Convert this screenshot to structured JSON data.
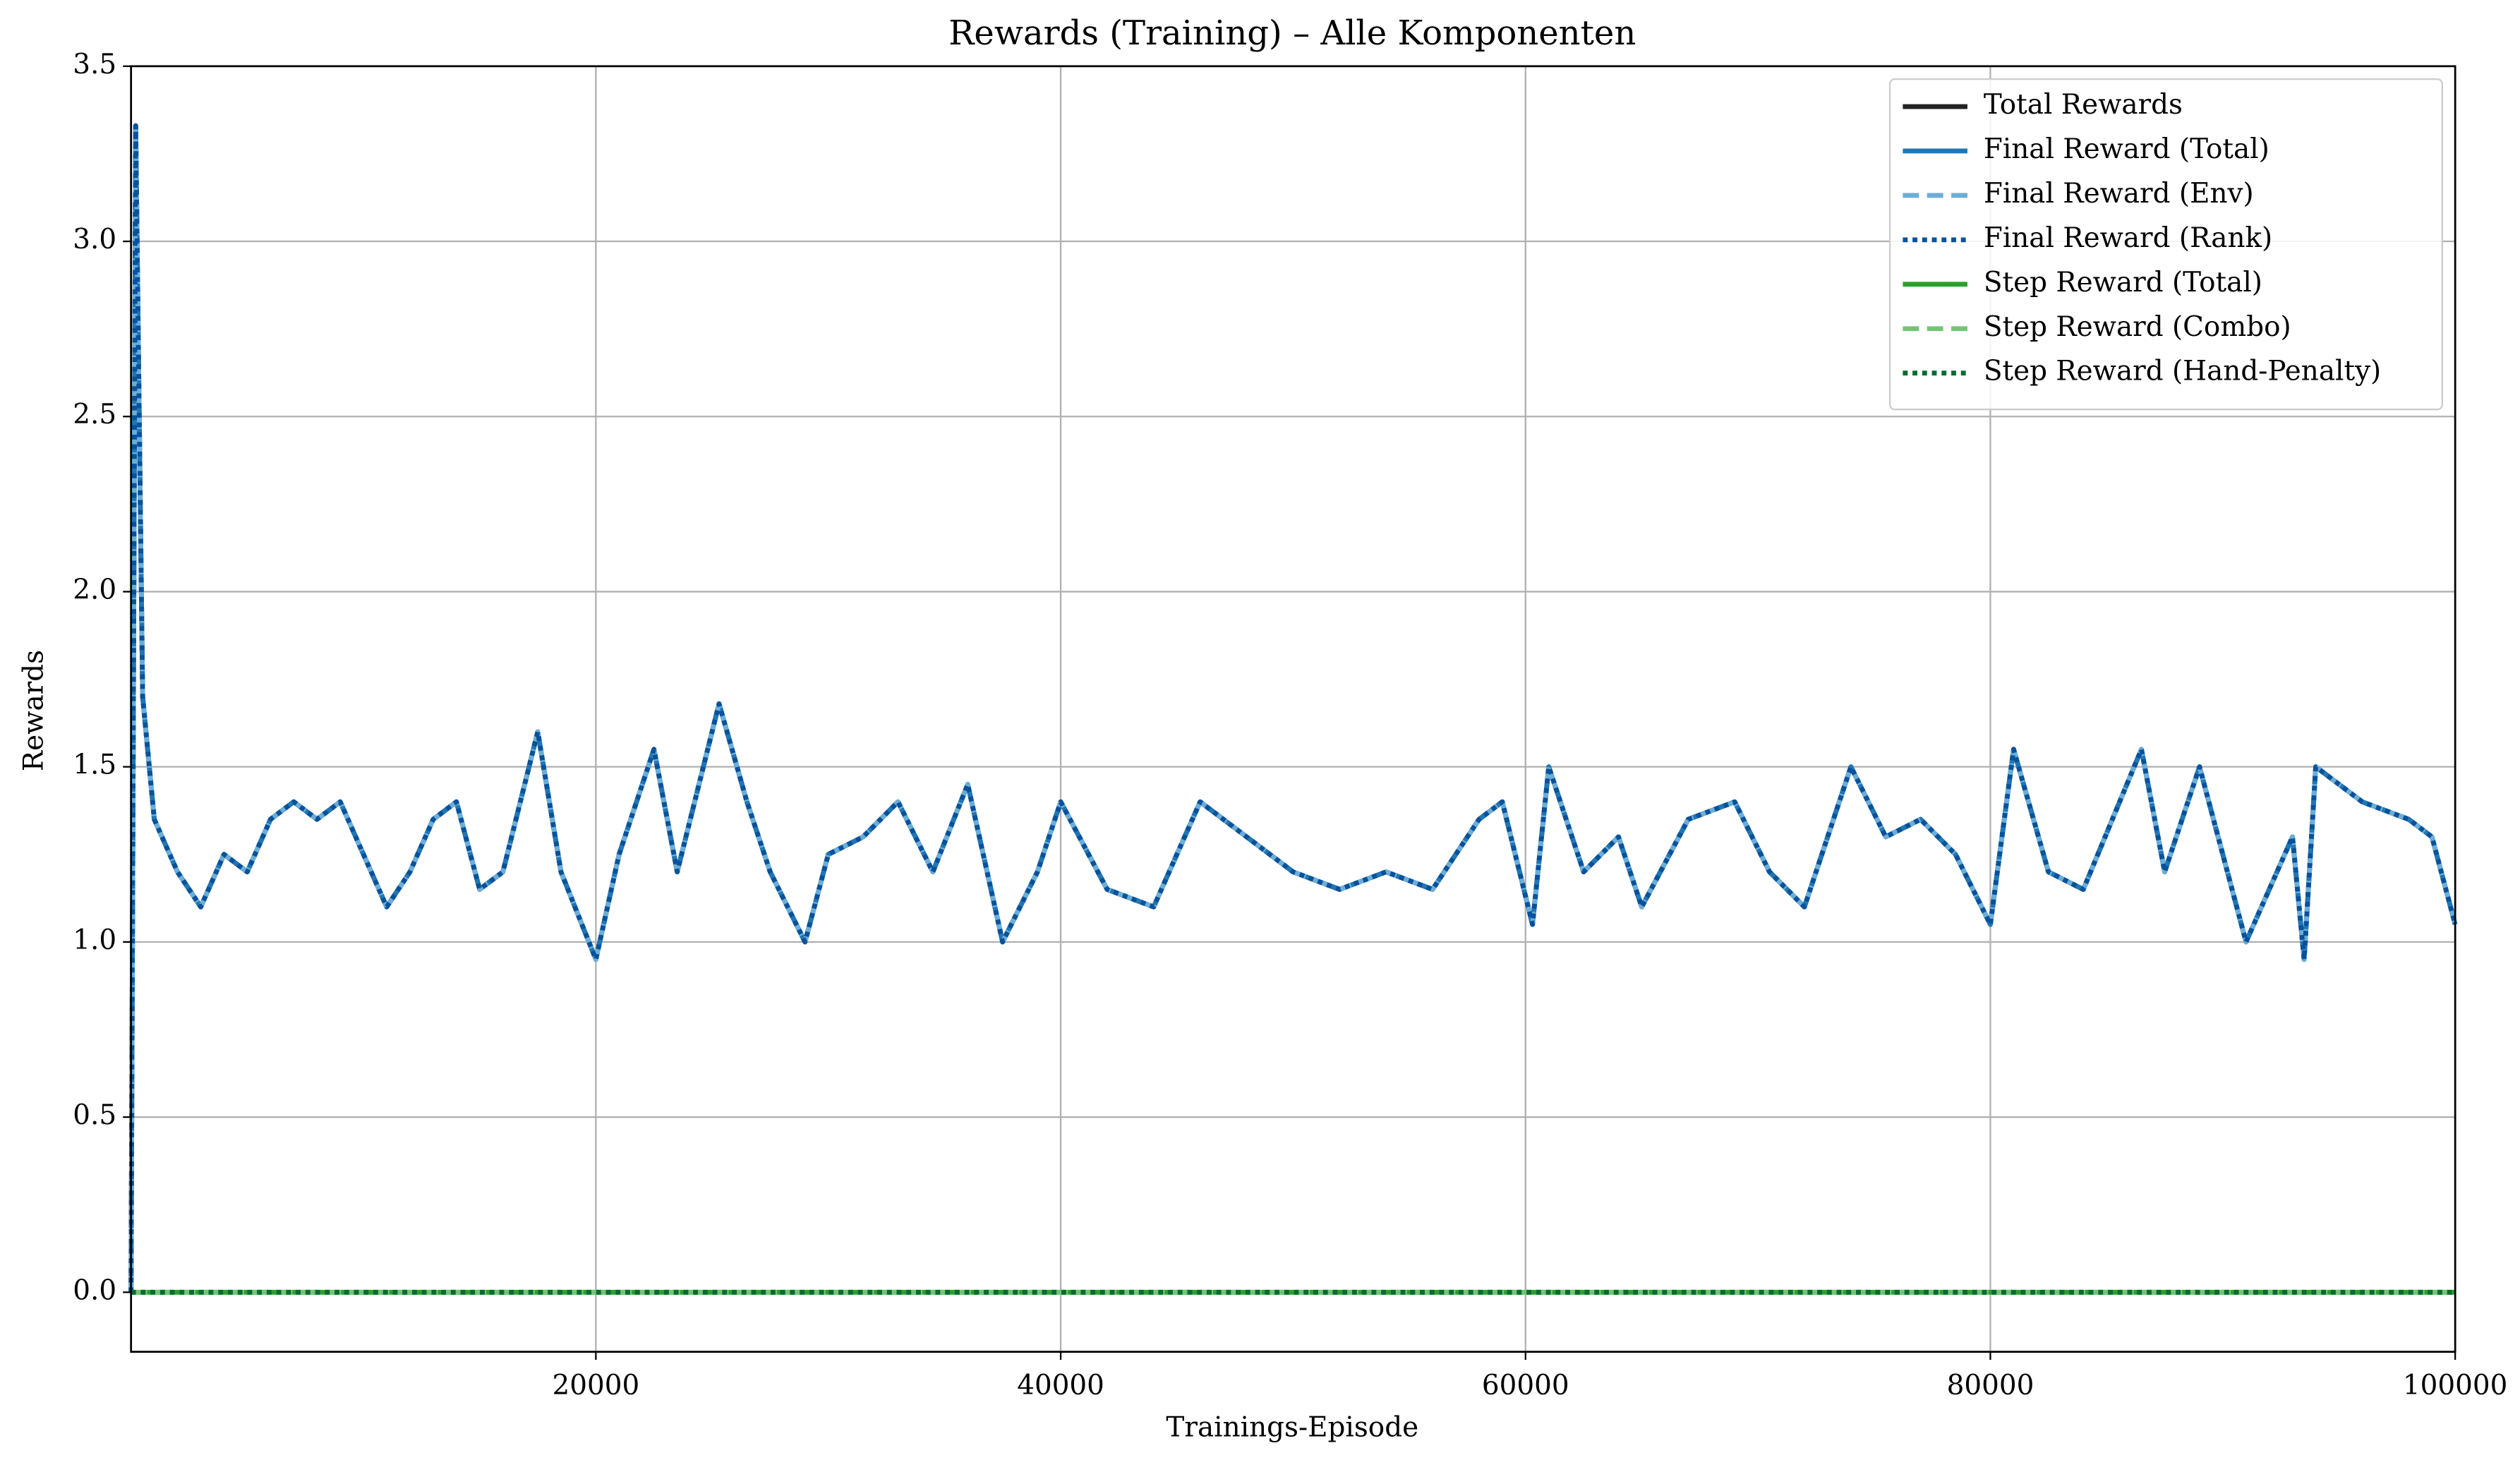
{
  "chart_data": {
    "type": "line",
    "title": "Rewards (Training) – Alle Komponenten",
    "x_label": "Trainings-Episode",
    "y_label": "Rewards",
    "xlim": [
      0,
      100000
    ],
    "xticks": [
      20000,
      40000,
      60000,
      80000,
      100000
    ],
    "ylim": [
      -0.17,
      3.5
    ],
    "yticks": [
      {
        "value": 0,
        "label": "0.0"
      },
      0.5,
      {
        "value": 1,
        "label": "1.0"
      },
      1.5,
      {
        "value": 2,
        "label": "2.0"
      },
      2.5,
      {
        "value": 3,
        "label": "3.0"
      },
      3.5
    ],
    "grid": true,
    "legend": "upper right",
    "x": [
      0,
      200,
      500,
      1000,
      2000,
      3000,
      4000,
      5000,
      6000,
      7000,
      8000,
      9000,
      10000,
      11000,
      12000,
      13000,
      14000,
      15000,
      16000,
      17500,
      18500,
      20000,
      21000,
      22500,
      23500,
      25300,
      26500,
      27500,
      29000,
      30000,
      31500,
      33000,
      34500,
      36000,
      37500,
      39000,
      40000,
      42000,
      44000,
      46000,
      48000,
      50000,
      52000,
      54000,
      56000,
      58000,
      59000,
      60300,
      61000,
      62500,
      64000,
      65000,
      67000,
      69000,
      70500,
      72000,
      74000,
      75500,
      77000,
      78500,
      80000,
      81000,
      82500,
      84000,
      86500,
      87500,
      89000,
      91000,
      93000,
      93500,
      94000,
      96000,
      98000,
      99000,
      100000
    ],
    "series": [
      {
        "name": "Total Rewards",
        "color": "#222222",
        "style": "solid",
        "values": [
          0,
          3.33,
          1.7,
          1.35,
          1.2,
          1.1,
          1.25,
          1.2,
          1.35,
          1.4,
          1.35,
          1.4,
          1.25,
          1.1,
          1.2,
          1.35,
          1.4,
          1.15,
          1.2,
          1.6,
          1.2,
          0.95,
          1.25,
          1.55,
          1.2,
          1.68,
          1.4,
          1.2,
          1.0,
          1.25,
          1.3,
          1.4,
          1.2,
          1.45,
          1.0,
          1.2,
          1.4,
          1.15,
          1.1,
          1.4,
          1.3,
          1.2,
          1.15,
          1.2,
          1.15,
          1.35,
          1.4,
          1.05,
          1.5,
          1.2,
          1.3,
          1.1,
          1.35,
          1.4,
          1.2,
          1.1,
          1.5,
          1.3,
          1.35,
          1.25,
          1.05,
          1.55,
          1.2,
          1.15,
          1.55,
          1.2,
          1.5,
          1.0,
          1.3,
          0.95,
          1.5,
          1.4,
          1.35,
          1.3,
          1.05
        ]
      },
      {
        "name": "Final Reward (Total)",
        "color": "#1f77b4",
        "style": "solid",
        "values": [
          0,
          3.33,
          1.7,
          1.35,
          1.2,
          1.1,
          1.25,
          1.2,
          1.35,
          1.4,
          1.35,
          1.4,
          1.25,
          1.1,
          1.2,
          1.35,
          1.4,
          1.15,
          1.2,
          1.6,
          1.2,
          0.95,
          1.25,
          1.55,
          1.2,
          1.68,
          1.4,
          1.2,
          1.0,
          1.25,
          1.3,
          1.4,
          1.2,
          1.45,
          1.0,
          1.2,
          1.4,
          1.15,
          1.1,
          1.4,
          1.3,
          1.2,
          1.15,
          1.2,
          1.15,
          1.35,
          1.4,
          1.05,
          1.5,
          1.2,
          1.3,
          1.1,
          1.35,
          1.4,
          1.2,
          1.1,
          1.5,
          1.3,
          1.35,
          1.25,
          1.05,
          1.55,
          1.2,
          1.15,
          1.55,
          1.2,
          1.5,
          1.0,
          1.3,
          0.95,
          1.5,
          1.4,
          1.35,
          1.3,
          1.05
        ]
      },
      {
        "name": "Final Reward (Env)",
        "color": "#6baed6",
        "style": "dashed",
        "values": [
          0,
          3.33,
          1.7,
          1.35,
          1.2,
          1.1,
          1.25,
          1.2,
          1.35,
          1.4,
          1.35,
          1.4,
          1.25,
          1.1,
          1.2,
          1.35,
          1.4,
          1.15,
          1.2,
          1.6,
          1.2,
          0.95,
          1.25,
          1.55,
          1.2,
          1.68,
          1.4,
          1.2,
          1.0,
          1.25,
          1.3,
          1.4,
          1.2,
          1.45,
          1.0,
          1.2,
          1.4,
          1.15,
          1.1,
          1.4,
          1.3,
          1.2,
          1.15,
          1.2,
          1.15,
          1.35,
          1.4,
          1.05,
          1.5,
          1.2,
          1.3,
          1.1,
          1.35,
          1.4,
          1.2,
          1.1,
          1.5,
          1.3,
          1.35,
          1.25,
          1.05,
          1.55,
          1.2,
          1.15,
          1.55,
          1.2,
          1.5,
          1.0,
          1.3,
          0.95,
          1.5,
          1.4,
          1.35,
          1.3,
          1.05
        ]
      },
      {
        "name": "Final Reward (Rank)",
        "color": "#08519c",
        "style": "dotted",
        "values": [
          0,
          3.33,
          1.7,
          1.35,
          1.2,
          1.1,
          1.25,
          1.2,
          1.35,
          1.4,
          1.35,
          1.4,
          1.25,
          1.1,
          1.2,
          1.35,
          1.4,
          1.15,
          1.2,
          1.6,
          1.2,
          0.95,
          1.25,
          1.55,
          1.2,
          1.68,
          1.4,
          1.2,
          1.0,
          1.25,
          1.3,
          1.4,
          1.2,
          1.45,
          1.0,
          1.2,
          1.4,
          1.15,
          1.1,
          1.4,
          1.3,
          1.2,
          1.15,
          1.2,
          1.15,
          1.35,
          1.4,
          1.05,
          1.5,
          1.2,
          1.3,
          1.1,
          1.35,
          1.4,
          1.2,
          1.1,
          1.5,
          1.3,
          1.35,
          1.25,
          1.05,
          1.55,
          1.2,
          1.15,
          1.55,
          1.2,
          1.5,
          1.0,
          1.3,
          0.95,
          1.5,
          1.4,
          1.35,
          1.3,
          1.05
        ]
      },
      {
        "name": "Step Reward (Total)",
        "color": "#2ca02c",
        "style": "solid",
        "values": [
          0,
          0,
          0,
          0,
          0,
          0,
          0,
          0,
          0,
          0,
          0,
          0,
          0,
          0,
          0,
          0,
          0,
          0,
          0,
          0,
          0,
          0,
          0,
          0,
          0,
          0,
          0,
          0,
          0,
          0,
          0,
          0,
          0,
          0,
          0,
          0,
          0,
          0,
          0,
          0,
          0,
          0,
          0,
          0,
          0,
          0,
          0,
          0,
          0,
          0,
          0,
          0,
          0,
          0,
          0,
          0,
          0,
          0,
          0,
          0,
          0,
          0,
          0,
          0,
          0,
          0,
          0,
          0,
          0,
          0,
          0,
          0,
          0,
          0,
          0
        ]
      },
      {
        "name": "Step Reward (Combo)",
        "color": "#74c476",
        "style": "dashed",
        "values": [
          0,
          0,
          0,
          0,
          0,
          0,
          0,
          0,
          0,
          0,
          0,
          0,
          0,
          0,
          0,
          0,
          0,
          0,
          0,
          0,
          0,
          0,
          0,
          0,
          0,
          0,
          0,
          0,
          0,
          0,
          0,
          0,
          0,
          0,
          0,
          0,
          0,
          0,
          0,
          0,
          0,
          0,
          0,
          0,
          0,
          0,
          0,
          0,
          0,
          0,
          0,
          0,
          0,
          0,
          0,
          0,
          0,
          0,
          0,
          0,
          0,
          0,
          0,
          0,
          0,
          0,
          0,
          0,
          0,
          0,
          0,
          0,
          0,
          0,
          0
        ]
      },
      {
        "name": "Step Reward (Hand-Penalty)",
        "color": "#006d2c",
        "style": "dotted",
        "values": [
          0,
          0,
          0,
          0,
          0,
          0,
          0,
          0,
          0,
          0,
          0,
          0,
          0,
          0,
          0,
          0,
          0,
          0,
          0,
          0,
          0,
          0,
          0,
          0,
          0,
          0,
          0,
          0,
          0,
          0,
          0,
          0,
          0,
          0,
          0,
          0,
          0,
          0,
          0,
          0,
          0,
          0,
          0,
          0,
          0,
          0,
          0,
          0,
          0,
          0,
          0,
          0,
          0,
          0,
          0,
          0,
          0,
          0,
          0,
          0,
          0,
          0,
          0,
          0,
          0,
          0,
          0,
          0,
          0,
          0,
          0,
          0,
          0,
          0,
          0
        ]
      }
    ]
  }
}
